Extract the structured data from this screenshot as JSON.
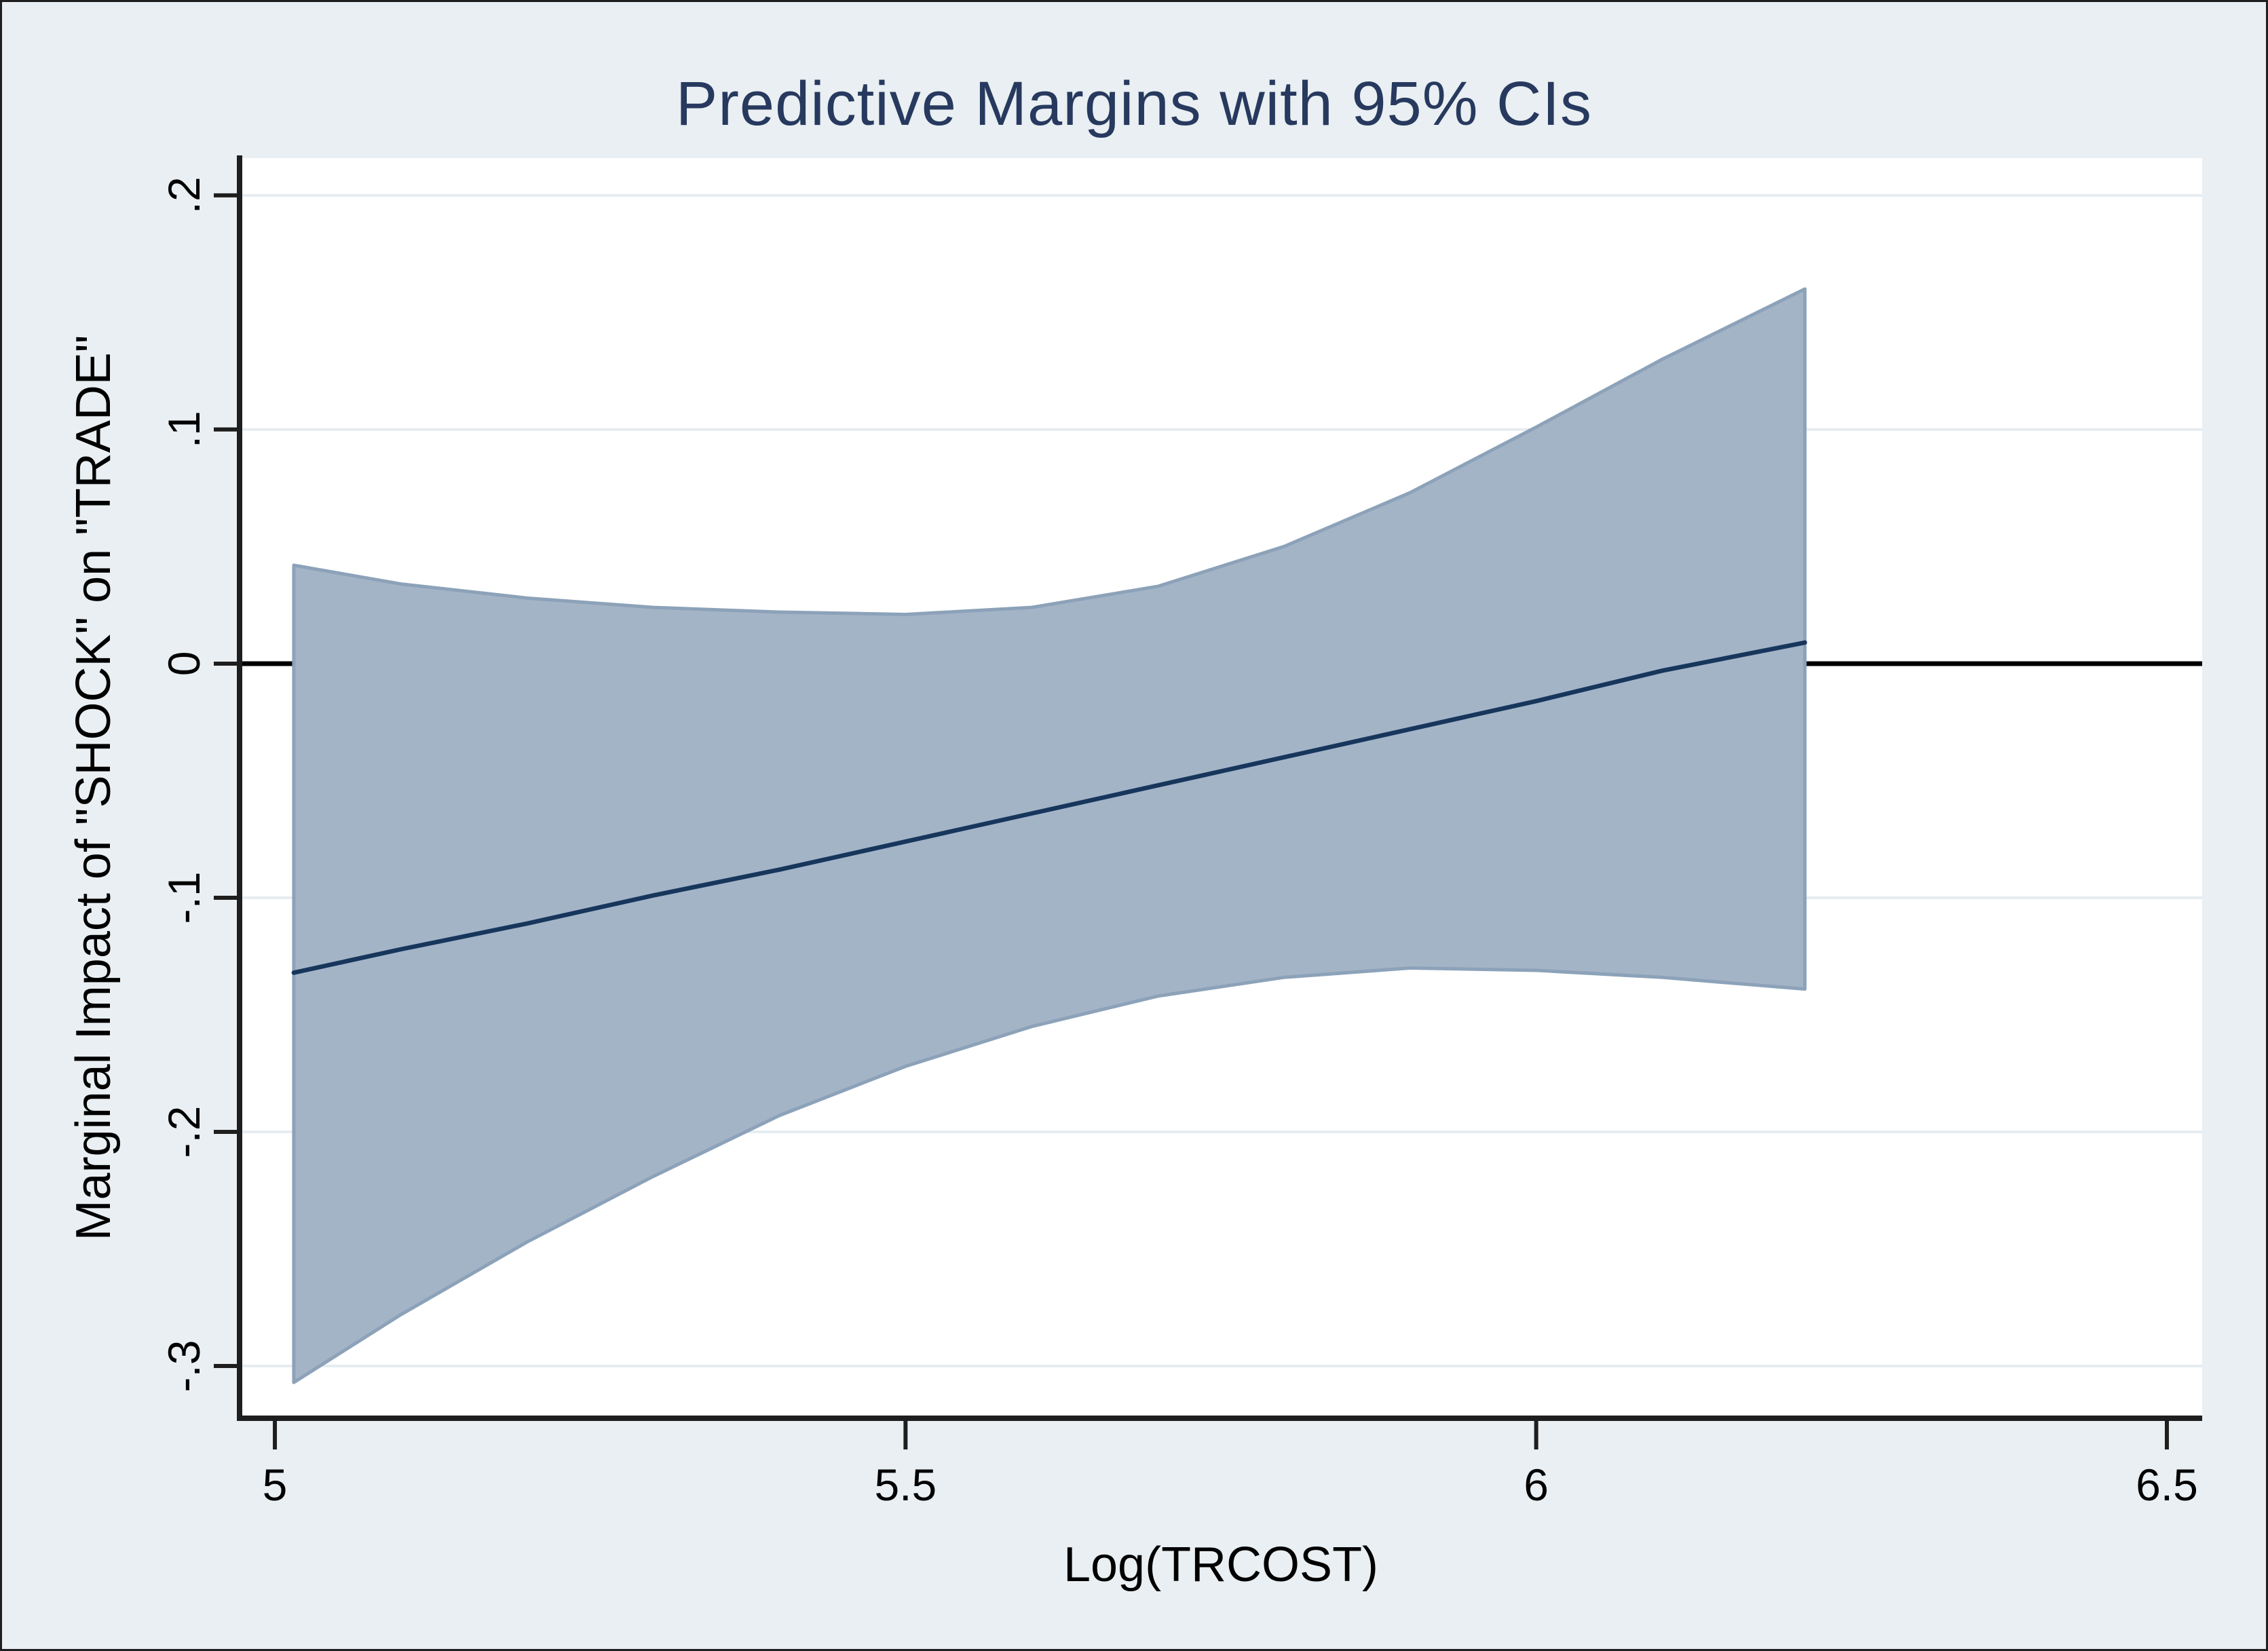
{
  "figure": {
    "background_color": "#e9eff2",
    "frame_color": "#1f1f1f",
    "plot_background_color": "#ffffff",
    "gridline_color": "#e6edf2",
    "axis_color": "#1e1e1e",
    "tick_label_color": "#000000",
    "zero_line_color": "#000000"
  },
  "chart_data": {
    "type": "area",
    "title": "Predictive Margins with 95% CIs",
    "title_color": "#27395e",
    "xlabel": "Log(TRCOST)",
    "ylabel": "Marginal Impact of \"SHOCK\" on \"TRADE\"",
    "xlim": [
      4.972,
      6.528
    ],
    "ylim": [
      -0.3223,
      0.2159
    ],
    "grid": true,
    "legend_position": "none",
    "zero_reference_line": 0,
    "x_ticks": [
      {
        "value": 5,
        "label": "5"
      },
      {
        "value": 5.5,
        "label": "5.5"
      },
      {
        "value": 6,
        "label": "6"
      },
      {
        "value": 6.5,
        "label": "6.5"
      }
    ],
    "y_ticks": [
      {
        "value": 0.2,
        "label": ".2"
      },
      {
        "value": 0.1,
        "label": ".1"
      },
      {
        "value": 0,
        "label": "0"
      },
      {
        "value": -0.1,
        "label": "-.1"
      },
      {
        "value": -0.2,
        "label": "-.2"
      },
      {
        "value": -0.3,
        "label": "-.3"
      }
    ],
    "series": [
      {
        "name": "95% confidence interval",
        "kind": "band",
        "fill_color": "#a4b4c7",
        "edge_color": "#8ca2b9",
        "x": [
          5.015,
          5.1,
          5.2,
          5.3,
          5.4,
          5.5,
          5.6,
          5.7,
          5.8,
          5.9,
          6.0,
          6.1,
          6.213
        ],
        "upper": [
          0.042,
          0.034,
          0.028,
          0.024,
          0.022,
          0.021,
          0.024,
          0.033,
          0.05,
          0.073,
          0.101,
          0.13,
          0.16
        ],
        "lower": [
          -0.307,
          -0.278,
          -0.247,
          -0.219,
          -0.193,
          -0.172,
          -0.155,
          -0.142,
          -0.134,
          -0.13,
          -0.131,
          -0.134,
          -0.139
        ]
      },
      {
        "name": "Predictive margin",
        "kind": "line",
        "line_color": "#17365c",
        "x": [
          5.015,
          5.1,
          5.2,
          5.3,
          5.4,
          5.5,
          5.6,
          5.7,
          5.8,
          5.9,
          6.0,
          6.1,
          6.213
        ],
        "y": [
          -0.132,
          -0.122,
          -0.111,
          -0.099,
          -0.088,
          -0.076,
          -0.064,
          -0.052,
          -0.04,
          -0.028,
          -0.016,
          -0.003,
          0.009
        ]
      }
    ]
  }
}
